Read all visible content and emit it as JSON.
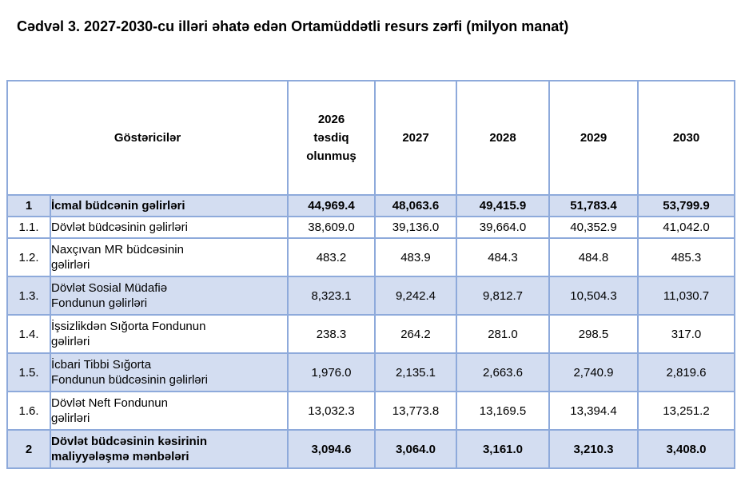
{
  "title": "Cədvəl 3. 2027-2030-cu illəri əhatə edən Ortamüddətli resurs zərfi (milyon manat)",
  "table": {
    "header": {
      "indicator_label": "Göstəricilər",
      "year_columns": [
        "2026\ntəsdiq\nolunmuş",
        "2027",
        "2028",
        "2029",
        "2030"
      ]
    },
    "rows": [
      {
        "num": "1",
        "label": "İcmal büdcənin gəlirləri",
        "values": [
          "44,969.4",
          "48,063.6",
          "49,415.9",
          "51,783.4",
          "53,799.9"
        ],
        "highlighted": true,
        "bold": true
      },
      {
        "num": "1.1.",
        "label": "Dövlət büdcəsinin gəlirləri",
        "values": [
          "38,609.0",
          "39,136.0",
          "39,664.0",
          "40,352.9",
          "41,042.0"
        ],
        "highlighted": false,
        "bold": false
      },
      {
        "num": "1.2.",
        "label": "Naxçıvan MR büdcəsinin\ngəlirləri",
        "values": [
          "483.2",
          "483.9",
          "484.3",
          "484.8",
          "485.3"
        ],
        "highlighted": false,
        "bold": false
      },
      {
        "num": "1.3.",
        "label": "Dövlət Sosial Müdafiə\nFondunun gəlirləri",
        "values": [
          "8,323.1",
          "9,242.4",
          "9,812.7",
          "10,504.3",
          "11,030.7"
        ],
        "highlighted": true,
        "bold": false
      },
      {
        "num": "1.4.",
        "label": "İşsizlikdən Sığorta Fondunun\ngəlirləri",
        "values": [
          "238.3",
          "264.2",
          "281.0",
          "298.5",
          "317.0"
        ],
        "highlighted": false,
        "bold": false
      },
      {
        "num": "1.5.",
        "label": "İcbari Tibbi Sığorta\nFondunun büdcəsinin gəlirləri",
        "values": [
          "1,976.0",
          "2,135.1",
          "2,663.6",
          "2,740.9",
          "2,819.6"
        ],
        "highlighted": true,
        "bold": false
      },
      {
        "num": "1.6.",
        "label": "Dövlət Neft Fondunun\ngəlirləri",
        "values": [
          "13,032.3",
          "13,773.8",
          "13,169.5",
          "13,394.4",
          "13,251.2"
        ],
        "highlighted": false,
        "bold": false
      },
      {
        "num": "2",
        "label": "Dövlət büdcəsinin kəsirinin\nmaliyyələşmə mənbələri",
        "values": [
          "3,094.6",
          "3,064.0",
          "3,161.0",
          "3,210.3",
          "3,408.0"
        ],
        "highlighted": true,
        "bold": true
      }
    ]
  },
  "colors": {
    "row_highlight": "#D3DDF1",
    "table_border": "#8EAADB",
    "text": "#000000",
    "background": "#FFFFFF"
  }
}
